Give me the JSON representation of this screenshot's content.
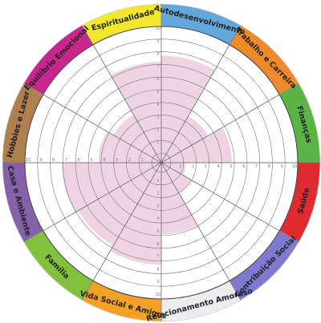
{
  "chart_data": {
    "type": "radial_bar",
    "max": 10,
    "ring_step": 1,
    "categories": [
      {
        "label": "Espiritualidade",
        "value": 7.2,
        "color": "#f2e72c"
      },
      {
        "label": "Autodesenvolvimento",
        "value": 7.7,
        "color": "#62a8dc"
      },
      {
        "label": "Trabalho e Carreira",
        "value": 3.5,
        "color": "#ee8a2a"
      },
      {
        "label": "Finanças",
        "value": 4.8,
        "color": "#5cb446"
      },
      {
        "label": "Saúde",
        "value": 1.2,
        "color": "#e02a2f"
      },
      {
        "label": "Contribuição Social",
        "value": 2.0,
        "color": "#7d7ad0"
      },
      {
        "label": "Relacionamento Amoroso",
        "value": 4.9,
        "color": "#ececef"
      },
      {
        "label": "Vida Social e Amigos",
        "value": 7.3,
        "color": "#f3a225"
      },
      {
        "label": "Família",
        "value": 6.8,
        "color": "#82c13b"
      },
      {
        "label": "Casa e Ambiente",
        "value": 7.1,
        "color": "#8561aa"
      },
      {
        "label": "Hobbies e Lazer",
        "value": 4.2,
        "color": "#b07f4e"
      },
      {
        "label": "Equilíbrio Emocional",
        "value": 3.6,
        "color": "#c9258e"
      }
    ],
    "tick_labels": [
      "1",
      "2",
      "3",
      "4",
      "5",
      "6",
      "7",
      "8",
      "9",
      "10"
    ],
    "fill_color": "#f0d3e2",
    "line_color": "#555555"
  }
}
